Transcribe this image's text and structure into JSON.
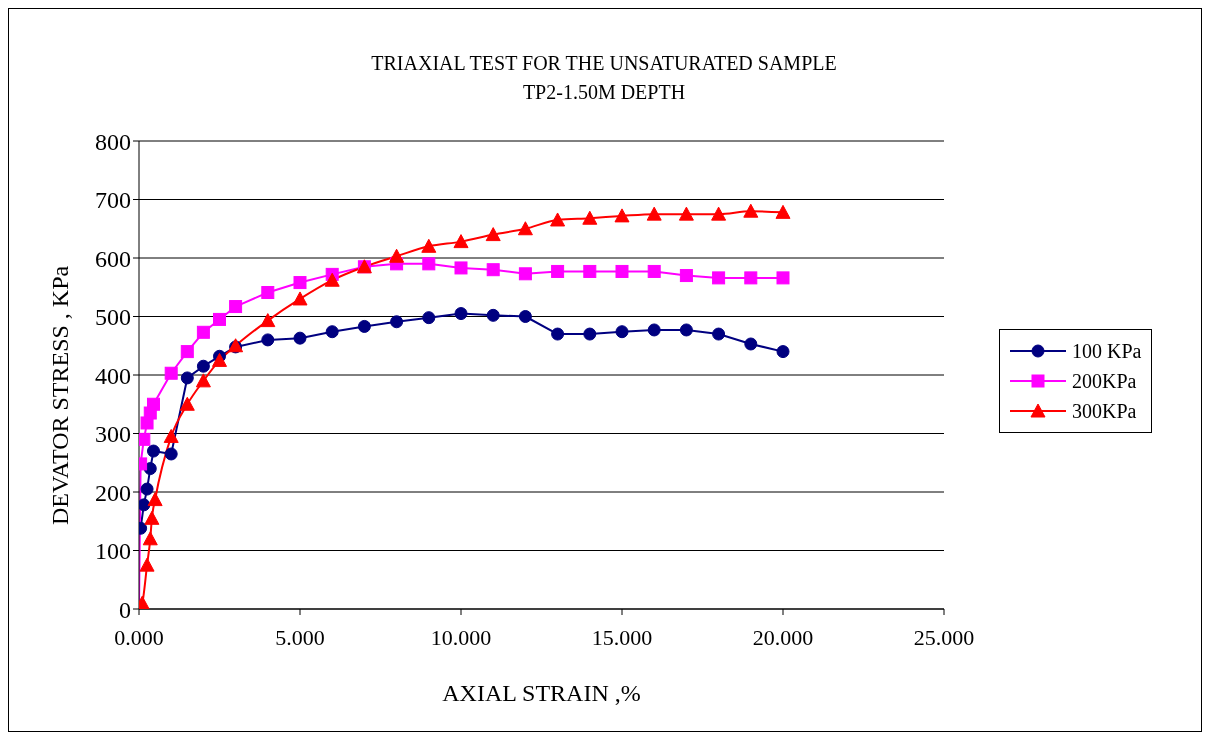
{
  "chart_data": {
    "type": "line",
    "title": "TRIAXIAL TEST  FOR THE UNSATURATED SAMPLE",
    "subtitle": "TP2-1.50M DEPTH",
    "xlabel": "AXIAL STRAIN ,%",
    "ylabel": "DEVATOR STRESS , KPa",
    "xlim": [
      0,
      25
    ],
    "xticks": [
      {
        "value": 0,
        "label": "0.000"
      },
      {
        "value": 5,
        "label": "5.000"
      },
      {
        "value": 10,
        "label": "10.000"
      },
      {
        "value": 15,
        "label": "15.000"
      },
      {
        "value": 20,
        "label": "20.000"
      },
      {
        "value": 25,
        "label": "25.000"
      }
    ],
    "ylim": [
      0,
      800
    ],
    "yticks": [
      0,
      100,
      200,
      300,
      400,
      500,
      600,
      700,
      800
    ],
    "grid": "y",
    "legend": "right",
    "line_style": "solid",
    "series": [
      {
        "name": "100 KPa",
        "color": "#000080",
        "marker": "circle",
        "x": [
          0.05,
          0.15,
          0.25,
          0.35,
          0.45,
          1,
          1.5,
          2,
          2.5,
          3,
          4,
          5,
          6,
          7,
          8,
          9,
          10,
          11,
          12,
          13,
          14,
          15,
          16,
          17,
          18,
          19,
          20
        ],
        "values": [
          138,
          178,
          205,
          240,
          270,
          265,
          395,
          415,
          432,
          448,
          460,
          463,
          474,
          483,
          491,
          498,
          505,
          502,
          500,
          470,
          470,
          474,
          477,
          477,
          470,
          453,
          440
        ]
      },
      {
        "name": "200KPa",
        "color": "#ff00ff",
        "marker": "square",
        "x": [
          0,
          0.05,
          0.15,
          0.25,
          0.35,
          0.45,
          1,
          1.5,
          2,
          2.5,
          3,
          4,
          5,
          6,
          7,
          8,
          9,
          10,
          11,
          12,
          13,
          14,
          15,
          16,
          17,
          18,
          19,
          20
        ],
        "values": [
          0,
          248,
          290,
          318,
          335,
          350,
          403,
          440,
          473,
          495,
          517,
          541,
          558,
          572,
          585,
          590,
          590,
          583,
          580,
          573,
          577,
          577,
          577,
          577,
          570,
          566,
          566,
          566
        ]
      },
      {
        "name": "300KPa",
        "color": "#ff0000",
        "marker": "triangle",
        "x": [
          0,
          0.1,
          0.25,
          0.35,
          0.4,
          0.5,
          1,
          1.5,
          2,
          2.5,
          3,
          4,
          5,
          6,
          7,
          8,
          9,
          10,
          11,
          12,
          13,
          14,
          15,
          16,
          17,
          18,
          19,
          20
        ],
        "values": [
          0,
          10,
          75,
          120,
          155,
          187,
          295,
          350,
          390,
          425,
          450,
          493,
          530,
          562,
          585,
          603,
          620,
          628,
          640,
          650,
          665,
          668,
          672,
          675,
          675,
          675,
          680,
          678
        ]
      }
    ]
  }
}
